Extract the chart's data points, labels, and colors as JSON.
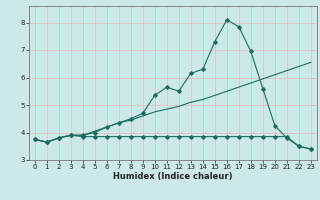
{
  "xlabel": "Humidex (Indice chaleur)",
  "xlim": [
    -0.5,
    23.5
  ],
  "ylim": [
    3.0,
    8.6
  ],
  "yticks": [
    3,
    4,
    5,
    6,
    7,
    8
  ],
  "xticks": [
    0,
    1,
    2,
    3,
    4,
    5,
    6,
    7,
    8,
    9,
    10,
    11,
    12,
    13,
    14,
    15,
    16,
    17,
    18,
    19,
    20,
    21,
    22,
    23
  ],
  "background_color": "#cce8e8",
  "grid_color": "#e8b8b8",
  "line_color": "#1a6e60",
  "line1_x": [
    0,
    1,
    2,
    3,
    4,
    5,
    6,
    7,
    8,
    9,
    10,
    11,
    12,
    13,
    14,
    15,
    16,
    17,
    18,
    19,
    20,
    21,
    22,
    23
  ],
  "line1_y": [
    3.75,
    3.65,
    3.8,
    3.9,
    3.85,
    3.85,
    3.85,
    3.85,
    3.85,
    3.85,
    3.85,
    3.85,
    3.85,
    3.85,
    3.85,
    3.85,
    3.85,
    3.85,
    3.85,
    3.85,
    3.85,
    3.85,
    3.5,
    3.4
  ],
  "line2_x": [
    0,
    1,
    2,
    3,
    4,
    5,
    6,
    7,
    8,
    9,
    10,
    11,
    12,
    13,
    14,
    15,
    16,
    17,
    18,
    19,
    20,
    21,
    22,
    23
  ],
  "line2_y": [
    3.75,
    3.65,
    3.8,
    3.9,
    3.9,
    4.05,
    4.2,
    4.35,
    4.45,
    4.6,
    4.75,
    4.85,
    4.95,
    5.1,
    5.2,
    5.35,
    5.5,
    5.65,
    5.8,
    5.95,
    6.1,
    6.25,
    6.4,
    6.55
  ],
  "line3_x": [
    0,
    1,
    2,
    3,
    4,
    5,
    6,
    7,
    8,
    9,
    10,
    11,
    12,
    13,
    14,
    15,
    16,
    17,
    18,
    19,
    20,
    21,
    22,
    23
  ],
  "line3_y": [
    3.75,
    3.65,
    3.8,
    3.9,
    3.9,
    4.0,
    4.2,
    4.35,
    4.5,
    4.7,
    5.35,
    5.65,
    5.5,
    6.15,
    6.3,
    7.3,
    8.1,
    7.85,
    6.95,
    5.6,
    4.25,
    3.8,
    3.5,
    3.4
  ]
}
